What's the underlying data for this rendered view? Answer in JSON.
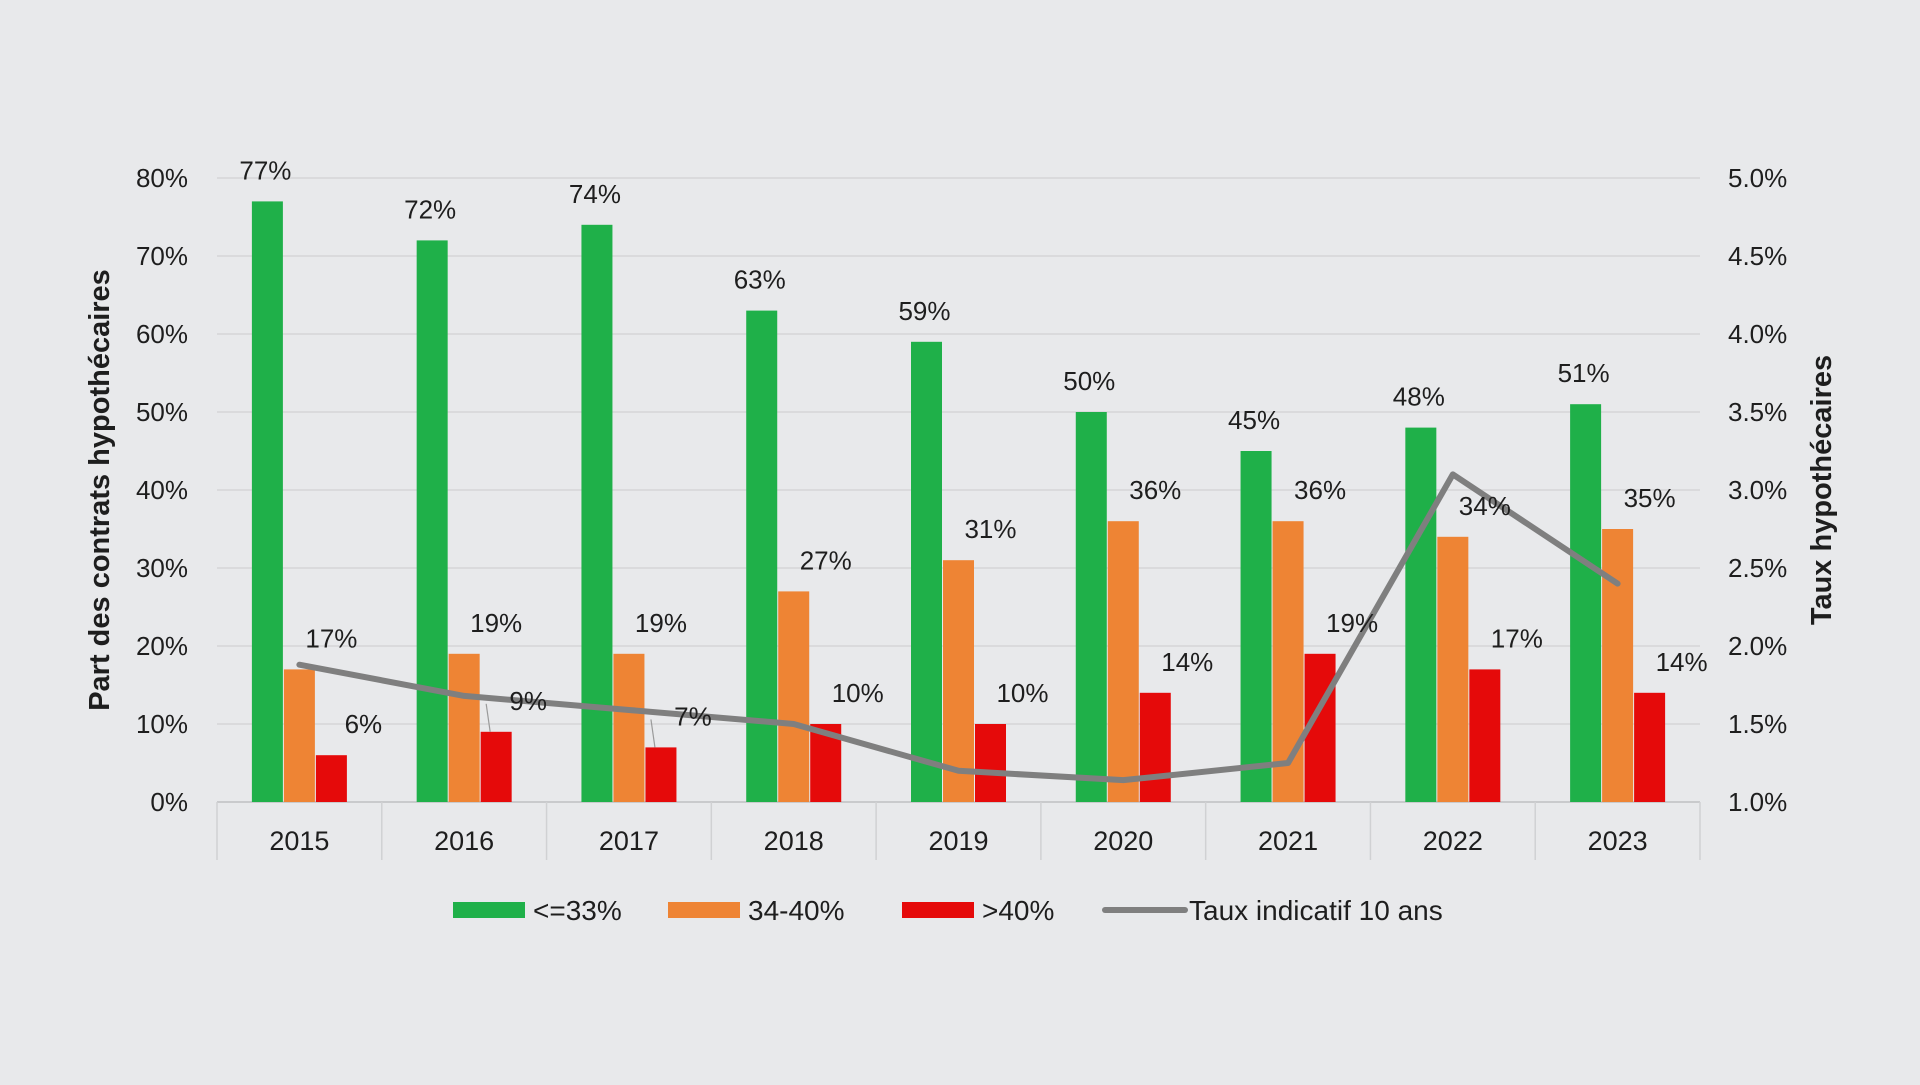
{
  "chart_data": {
    "type": "bar",
    "categories": [
      "2015",
      "2016",
      "2017",
      "2018",
      "2019",
      "2020",
      "2021",
      "2022",
      "2023"
    ],
    "series": [
      {
        "name": "<=33%",
        "kind": "bar",
        "axis": "left",
        "color": "#1fb049",
        "values": [
          77,
          72,
          74,
          63,
          59,
          50,
          45,
          48,
          51
        ],
        "labels": [
          "77%",
          "72%",
          "74%",
          "63%",
          "59%",
          "50%",
          "45%",
          "48%",
          "51%"
        ]
      },
      {
        "name": "34-40%",
        "kind": "bar",
        "axis": "left",
        "color": "#ee8434",
        "values": [
          17,
          19,
          19,
          27,
          31,
          36,
          36,
          34,
          35
        ],
        "labels": [
          "17%",
          "19%",
          "19%",
          "27%",
          "31%",
          "36%",
          "36%",
          "34%",
          "35%"
        ]
      },
      {
        "name": ">40%",
        "kind": "bar",
        "axis": "left",
        "color": "#e50a0a",
        "values": [
          6,
          9,
          7,
          10,
          10,
          14,
          19,
          17,
          14
        ],
        "labels": [
          "6%",
          "9%",
          "7%",
          "10%",
          "10%",
          "14%",
          "19%",
          "17%",
          "14%"
        ]
      },
      {
        "name": "Taux indicatif 10 ans",
        "kind": "line",
        "axis": "right",
        "color": "#7f7f7f",
        "values": [
          1.88,
          1.68,
          1.59,
          1.5,
          1.2,
          1.14,
          1.25,
          3.1,
          2.4
        ]
      }
    ],
    "ylabel": "Part des contrats hypothécaires",
    "y2label": "Taux hypothécaires",
    "ylim": [
      0,
      80
    ],
    "y2lim": [
      1.0,
      5.0
    ],
    "yticks": [
      "0%",
      "10%",
      "20%",
      "30%",
      "40%",
      "50%",
      "60%",
      "70%",
      "80%"
    ],
    "y2ticks": [
      "1.0%",
      "1.5%",
      "2.0%",
      "2.5%",
      "3.0%",
      "3.5%",
      "4.0%",
      "4.5%",
      "5.0%"
    ],
    "grid": true,
    "legend_position": "bottom"
  }
}
